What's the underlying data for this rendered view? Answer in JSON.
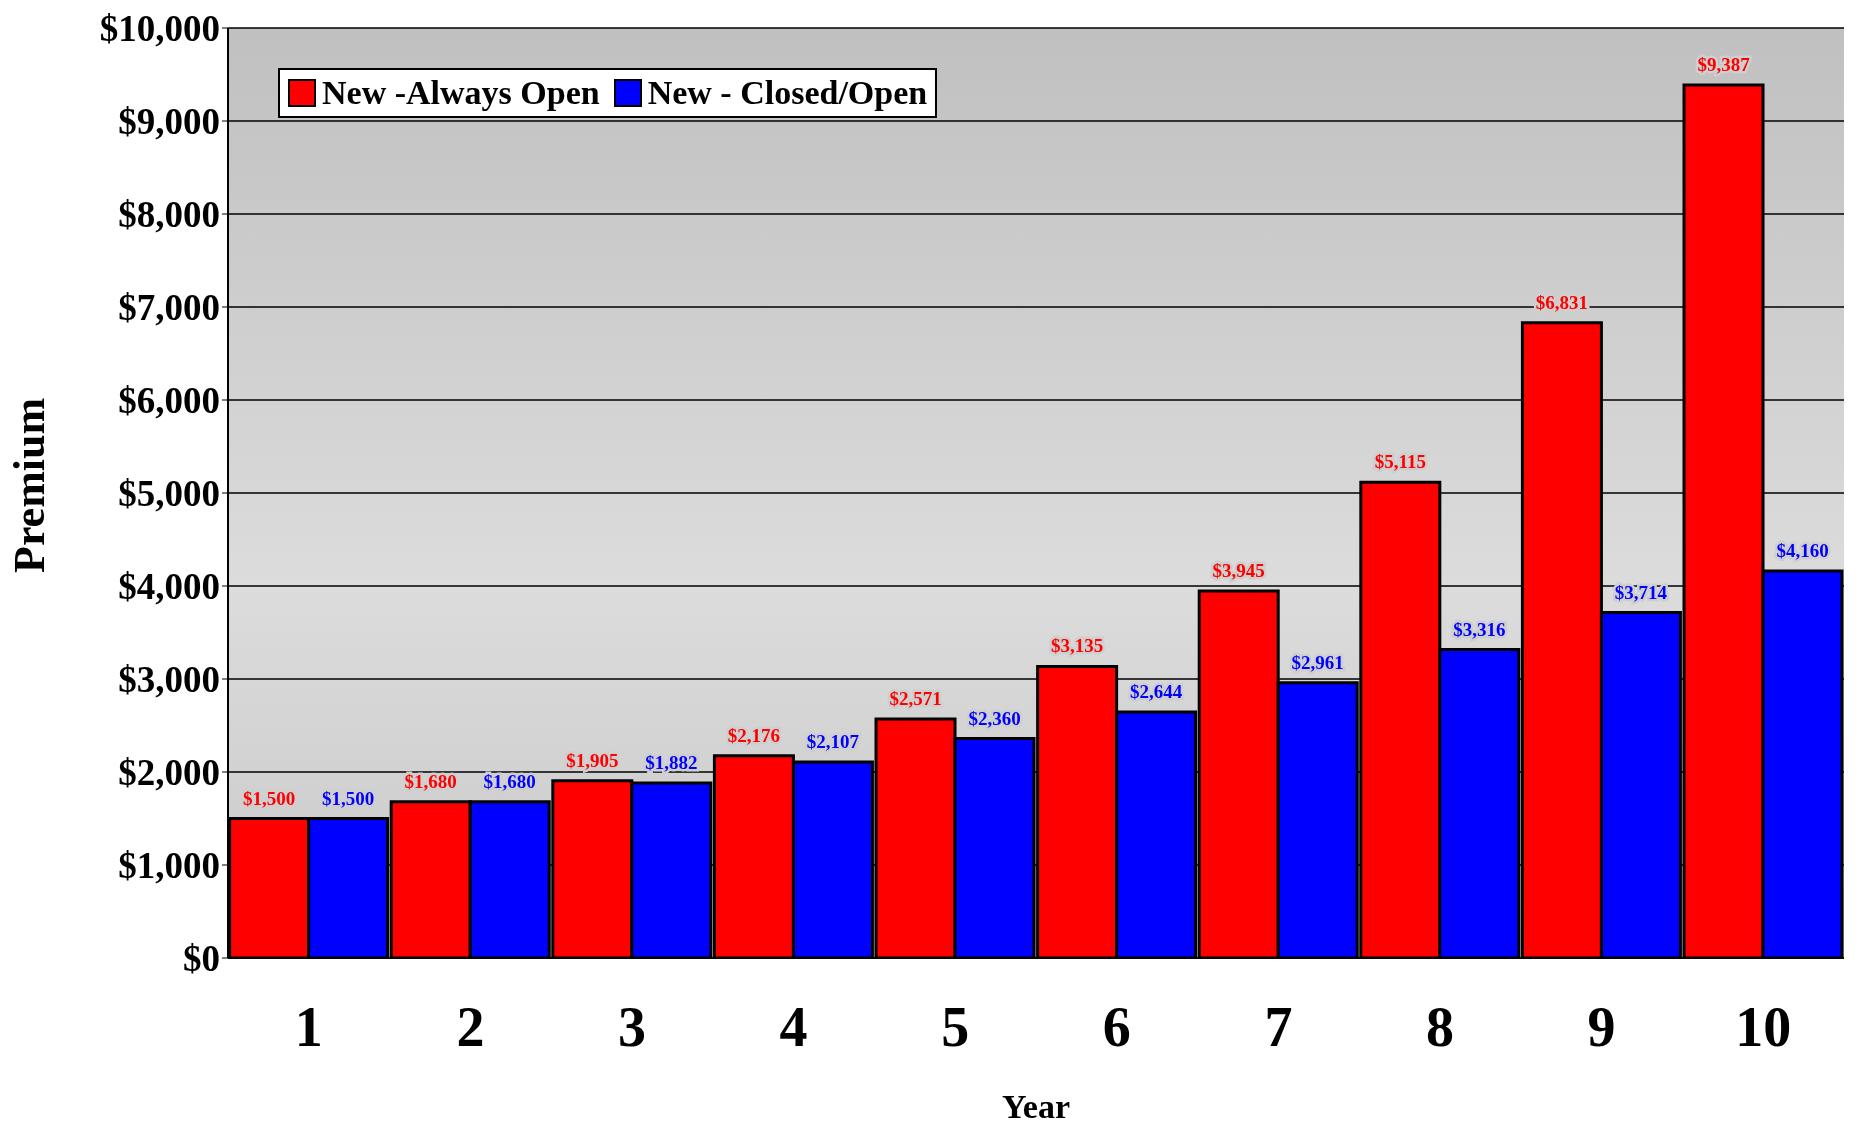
{
  "chart_data": {
    "type": "bar",
    "xlabel": "Year",
    "ylabel": "Premium",
    "categories": [
      "1",
      "2",
      "3",
      "4",
      "5",
      "6",
      "7",
      "8",
      "9",
      "10"
    ],
    "series": [
      {
        "name": "New -Always Open",
        "color": "#ff0000",
        "values": [
          1500,
          1680,
          1905,
          2176,
          2571,
          3135,
          3945,
          5115,
          6831,
          9387
        ],
        "value_labels": [
          "$1,500",
          "$1,680",
          "$1,905",
          "$2,176",
          "$2,571",
          "$3,135",
          "$3,945",
          "$5,115",
          "$6,831",
          "$9,387"
        ]
      },
      {
        "name": "New - Closed/Open",
        "color": "#0000ff",
        "values": [
          1500,
          1680,
          1882,
          2107,
          2360,
          2644,
          2961,
          3316,
          3714,
          4160
        ],
        "value_labels": [
          "$1,500",
          "$1,680",
          "$1,882",
          "$2,107",
          "$2,360",
          "$2,644",
          "$2,961",
          "$3,316",
          "$3,714",
          "$4,160"
        ]
      }
    ],
    "ylim": [
      0,
      10000
    ],
    "yticks": [
      {
        "value": 0,
        "label": "$0"
      },
      {
        "value": 1000,
        "label": "$1,000"
      },
      {
        "value": 2000,
        "label": "$2,000"
      },
      {
        "value": 3000,
        "label": "$3,000"
      },
      {
        "value": 4000,
        "label": "$4,000"
      },
      {
        "value": 5000,
        "label": "$5,000"
      },
      {
        "value": 6000,
        "label": "$6,000"
      },
      {
        "value": 7000,
        "label": "$7,000"
      },
      {
        "value": 8000,
        "label": "$8,000"
      },
      {
        "value": 9000,
        "label": "$9,000"
      },
      {
        "value": 10000,
        "label": "$10,000"
      }
    ],
    "grid": "y",
    "legend": "top left"
  }
}
